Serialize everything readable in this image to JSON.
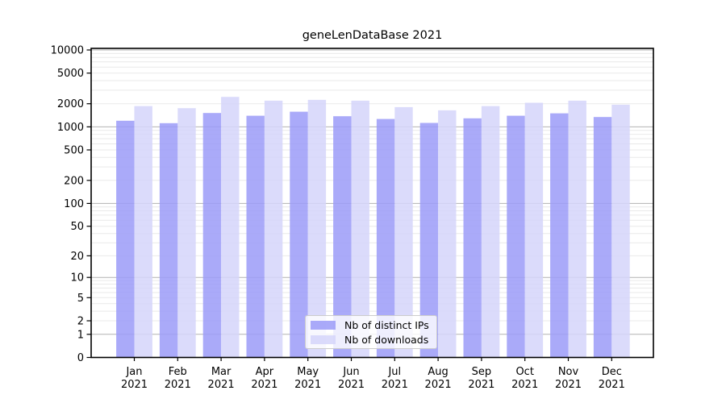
{
  "chart_data": {
    "type": "bar",
    "title": "geneLenDataBase 2021",
    "year_label": "2021",
    "categories": [
      "Jan",
      "Feb",
      "Mar",
      "Apr",
      "May",
      "Jun",
      "Jul",
      "Aug",
      "Sep",
      "Oct",
      "Nov",
      "Dec"
    ],
    "series": [
      {
        "name": "Nb of distinct IPs",
        "values": [
          1200,
          1115,
          1515,
          1395,
          1575,
          1375,
          1265,
          1125,
          1290,
          1395,
          1500,
          1340
        ]
      },
      {
        "name": "Nb of downloads",
        "values": [
          1865,
          1750,
          2455,
          2190,
          2245,
          2190,
          1805,
          1640,
          1865,
          2055,
          2190,
          1940
        ]
      }
    ],
    "yscale": "log1p",
    "ylim": [
      0,
      10500
    ],
    "yticks": [
      0,
      1,
      2,
      5,
      10,
      20,
      50,
      100,
      200,
      500,
      1000,
      2000,
      5000,
      10000
    ],
    "grid": true,
    "legend_position": "bottom-center-inside",
    "colors": {
      "distinct_ips": "#9b9bf8",
      "downloads": "#d5d5fa",
      "bar_opacity": 0.85,
      "grid_major": "#b3b3b3",
      "grid_minor": "#e9e9e9",
      "axis": "#000000",
      "legend_border": "#cccccc"
    }
  }
}
